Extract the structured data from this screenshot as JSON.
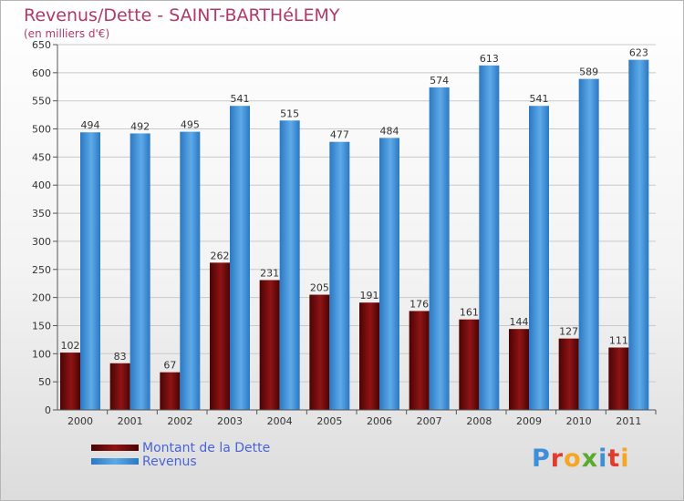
{
  "chart_data": {
    "type": "bar",
    "title": "Revenus/Dette - SAINT-BARTHéLEMY",
    "subtitle": "(en milliers d'€)",
    "categories": [
      "2000",
      "2001",
      "2002",
      "2003",
      "2004",
      "2005",
      "2006",
      "2007",
      "2008",
      "2009",
      "2010",
      "2011"
    ],
    "series": [
      {
        "name": "Montant de la Dette",
        "color": "#6b0a0a",
        "values": [
          102,
          83,
          67,
          262,
          231,
          205,
          191,
          176,
          161,
          144,
          127,
          111
        ]
      },
      {
        "name": "Revenus",
        "color": "#3d8fd8",
        "values": [
          494,
          492,
          495,
          541,
          515,
          477,
          484,
          574,
          613,
          541,
          589,
          623
        ]
      }
    ],
    "ylim": [
      0,
      650
    ],
    "yticks": [
      0,
      50,
      100,
      150,
      200,
      250,
      300,
      350,
      400,
      450,
      500,
      550,
      600,
      650
    ],
    "grid": true,
    "legend_position": "bottom-left"
  },
  "brand": {
    "letters": [
      "P",
      "r",
      "o",
      "x",
      "i",
      "t",
      "i"
    ],
    "colors": [
      "#3f8fd6",
      "#e23b2d",
      "#f5a623",
      "#5aaa2e",
      "#3f8fd6",
      "#e23b2d",
      "#f5a623"
    ]
  }
}
